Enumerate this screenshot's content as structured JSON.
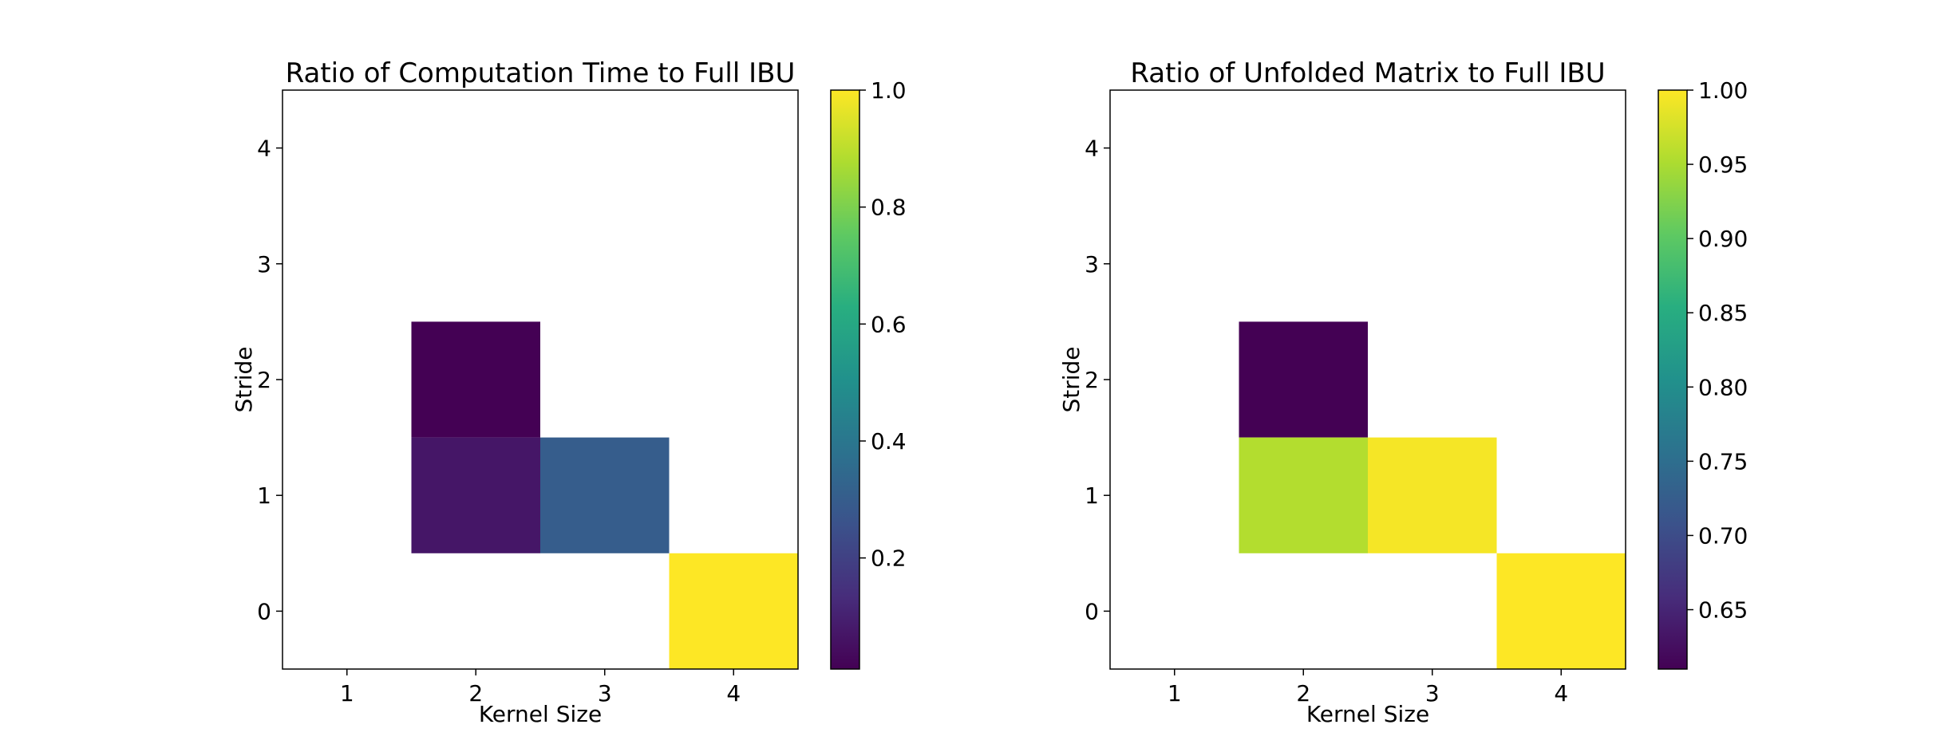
{
  "chart_data": [
    {
      "type": "heatmap",
      "title": "Ratio of Computation Time to Full IBU",
      "xlabel": "Kernel Size",
      "ylabel": "Stride",
      "x_ticks": [
        "1",
        "2",
        "3",
        "4"
      ],
      "y_ticks": [
        "0",
        "1",
        "2",
        "3",
        "4"
      ],
      "xlim": [
        0.5,
        4.5
      ],
      "ylim": [
        -0.5,
        4.5
      ],
      "cells": [
        {
          "kernel": 2,
          "stride": 2,
          "value": 0.01
        },
        {
          "kernel": 2,
          "stride": 1,
          "value": 0.07
        },
        {
          "kernel": 3,
          "stride": 1,
          "value": 0.3
        },
        {
          "kernel": 4,
          "stride": 0,
          "value": 1.0
        }
      ],
      "colorbar": {
        "min": 0.01,
        "max": 1.0,
        "ticks": [
          "0.2",
          "0.4",
          "0.6",
          "0.8",
          "1.0"
        ],
        "tick_values": [
          0.2,
          0.4,
          0.6,
          0.8,
          1.0
        ]
      },
      "colormap": "viridis",
      "grid": false
    },
    {
      "type": "heatmap",
      "title": "Ratio of Unfolded Matrix to Full IBU",
      "xlabel": "Kernel Size",
      "ylabel": "Stride",
      "x_ticks": [
        "1",
        "2",
        "3",
        "4"
      ],
      "y_ticks": [
        "0",
        "1",
        "2",
        "3",
        "4"
      ],
      "xlim": [
        0.5,
        4.5
      ],
      "ylim": [
        -0.5,
        4.5
      ],
      "cells": [
        {
          "kernel": 2,
          "stride": 2,
          "value": 0.61
        },
        {
          "kernel": 2,
          "stride": 1,
          "value": 0.955
        },
        {
          "kernel": 3,
          "stride": 1,
          "value": 0.995
        },
        {
          "kernel": 4,
          "stride": 0,
          "value": 1.0
        }
      ],
      "colorbar": {
        "min": 0.61,
        "max": 1.0,
        "ticks": [
          "0.65",
          "0.70",
          "0.75",
          "0.80",
          "0.85",
          "0.90",
          "0.95",
          "1.00"
        ],
        "tick_values": [
          0.65,
          0.7,
          0.75,
          0.8,
          0.85,
          0.9,
          0.95,
          1.0
        ]
      },
      "colormap": "viridis",
      "grid": false
    }
  ]
}
